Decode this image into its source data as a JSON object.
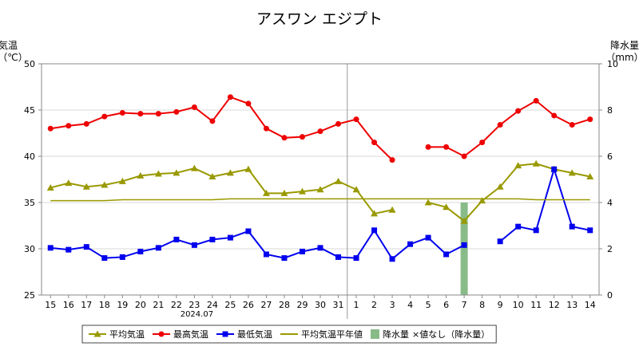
{
  "chart_data": {
    "type": "line",
    "title": "アスワン エジプト",
    "left_axis": {
      "label_line1": "気温",
      "label_line2": "（℃）",
      "ylim": [
        25,
        50
      ],
      "ticks": [
        25,
        30,
        35,
        40,
        45,
        50
      ]
    },
    "right_axis": {
      "label_line1": "降水量",
      "label_line2": "（mm）",
      "ylim": [
        0,
        10
      ],
      "ticks": [
        0,
        2,
        4,
        6,
        8,
        10
      ]
    },
    "categories": [
      "15",
      "16",
      "17",
      "18",
      "19",
      "20",
      "21",
      "22",
      "23",
      "24",
      "25",
      "26",
      "27",
      "28",
      "29",
      "30",
      "31",
      "1",
      "2",
      "3",
      "4",
      "5",
      "6",
      "7",
      "8",
      "9",
      "10",
      "11",
      "12",
      "13",
      "14"
    ],
    "month_label": "2024.07",
    "month_label_under": "23",
    "month_divider_after": "31",
    "grid": true,
    "series": [
      {
        "name": "平均気温",
        "color": "#999900",
        "marker": "triangle",
        "axis": "left",
        "values": [
          36.6,
          37.1,
          36.7,
          36.9,
          37.3,
          37.9,
          38.1,
          38.2,
          38.7,
          37.8,
          38.2,
          38.6,
          36.0,
          36.0,
          36.2,
          36.4,
          37.3,
          36.4,
          33.8,
          34.2,
          null,
          35.0,
          34.5,
          33.0,
          35.2,
          36.7,
          39.0,
          39.2,
          38.6,
          38.2,
          37.8
        ]
      },
      {
        "name": "最高気温",
        "color": "#ee0000",
        "marker": "circle",
        "axis": "left",
        "values": [
          43.0,
          43.3,
          43.5,
          44.3,
          44.7,
          44.6,
          44.6,
          44.8,
          45.3,
          43.8,
          46.4,
          45.7,
          43.0,
          42.0,
          42.1,
          42.7,
          43.5,
          44.0,
          41.5,
          39.6,
          null,
          41.0,
          41.0,
          40.0,
          41.5,
          43.4,
          44.9,
          46.0,
          44.4,
          43.4,
          44.0
        ]
      },
      {
        "name": "最低気温",
        "color": "#0000ee",
        "marker": "square",
        "axis": "left",
        "values": [
          30.1,
          29.9,
          30.2,
          29.0,
          29.1,
          29.7,
          30.1,
          31.0,
          30.4,
          31.0,
          31.2,
          31.9,
          29.4,
          29.0,
          29.7,
          30.1,
          29.1,
          29.0,
          32.0,
          28.9,
          30.5,
          31.2,
          29.4,
          30.4,
          null,
          30.8,
          32.4,
          32.0,
          38.6,
          32.4,
          32.0
        ]
      },
      {
        "name": "平均気温平年値",
        "color": "#999900",
        "marker": "none",
        "axis": "left",
        "values": [
          35.2,
          35.2,
          35.2,
          35.2,
          35.3,
          35.3,
          35.3,
          35.3,
          35.3,
          35.3,
          35.4,
          35.4,
          35.4,
          35.4,
          35.4,
          35.4,
          35.4,
          35.4,
          35.4,
          35.4,
          35.4,
          35.4,
          35.4,
          35.4,
          35.4,
          35.4,
          35.4,
          35.3,
          35.3,
          35.3,
          35.3
        ]
      },
      {
        "name": "降水量",
        "color": "#88bb88",
        "type": "bar",
        "axis": "right",
        "values": [
          0,
          0,
          0,
          0,
          0,
          0,
          0,
          0,
          0,
          0,
          0,
          0,
          0,
          0,
          0,
          0,
          0,
          0,
          0,
          0,
          0,
          0,
          0,
          4,
          0,
          0,
          0,
          0,
          0,
          0,
          0
        ]
      }
    ],
    "legend": {
      "items": [
        {
          "label": "平均気温",
          "color": "#999900",
          "marker": "triangle"
        },
        {
          "label": "最高気温",
          "color": "#ee0000",
          "marker": "circle"
        },
        {
          "label": "最低気温",
          "color": "#0000ee",
          "marker": "square"
        },
        {
          "label": "平均気温平年値",
          "color": "#999900",
          "marker": "line"
        },
        {
          "label": "降水量",
          "color": "#88bb88",
          "marker": "bar"
        }
      ],
      "note": "×値なし（降水量）",
      "placement": "bottom"
    }
  }
}
